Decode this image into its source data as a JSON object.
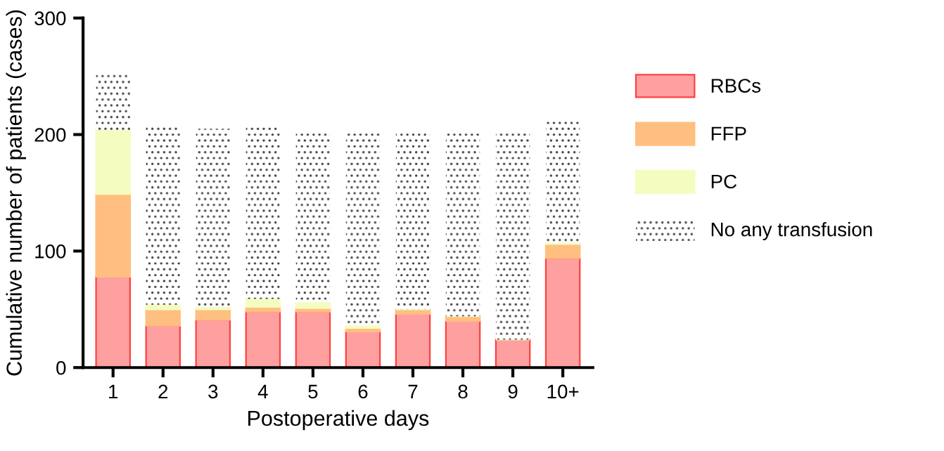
{
  "chart_data": {
    "type": "bar",
    "stacked": true,
    "xlabel": "Postoperative days",
    "ylabel": "Cumulative number of patients (cases)",
    "categories": [
      "1",
      "2",
      "3",
      "4",
      "5",
      "6",
      "7",
      "8",
      "9",
      "10+"
    ],
    "series": [
      {
        "name": "RBCs",
        "color": "#ffa0a0",
        "values": [
          78,
          36,
          41,
          48,
          48,
          31,
          46,
          40,
          24,
          94
        ]
      },
      {
        "name": "FFP",
        "color": "#ffbf80",
        "values": [
          71,
          14,
          9,
          4,
          3,
          3,
          4,
          4,
          0,
          12
        ]
      },
      {
        "name": "PC",
        "color": "#f5fcc0",
        "values": [
          55,
          4,
          2,
          7,
          5,
          2,
          0,
          0,
          0,
          1
        ]
      },
      {
        "name": "No any transfusion",
        "color": "#ffffff",
        "values": [
          50,
          153,
          153,
          147,
          147,
          165,
          151,
          160,
          177,
          106
        ]
      }
    ],
    "ylim": [
      0,
      300
    ],
    "yticks": [
      0,
      100,
      200,
      300
    ],
    "grid": false,
    "legend": "right"
  }
}
